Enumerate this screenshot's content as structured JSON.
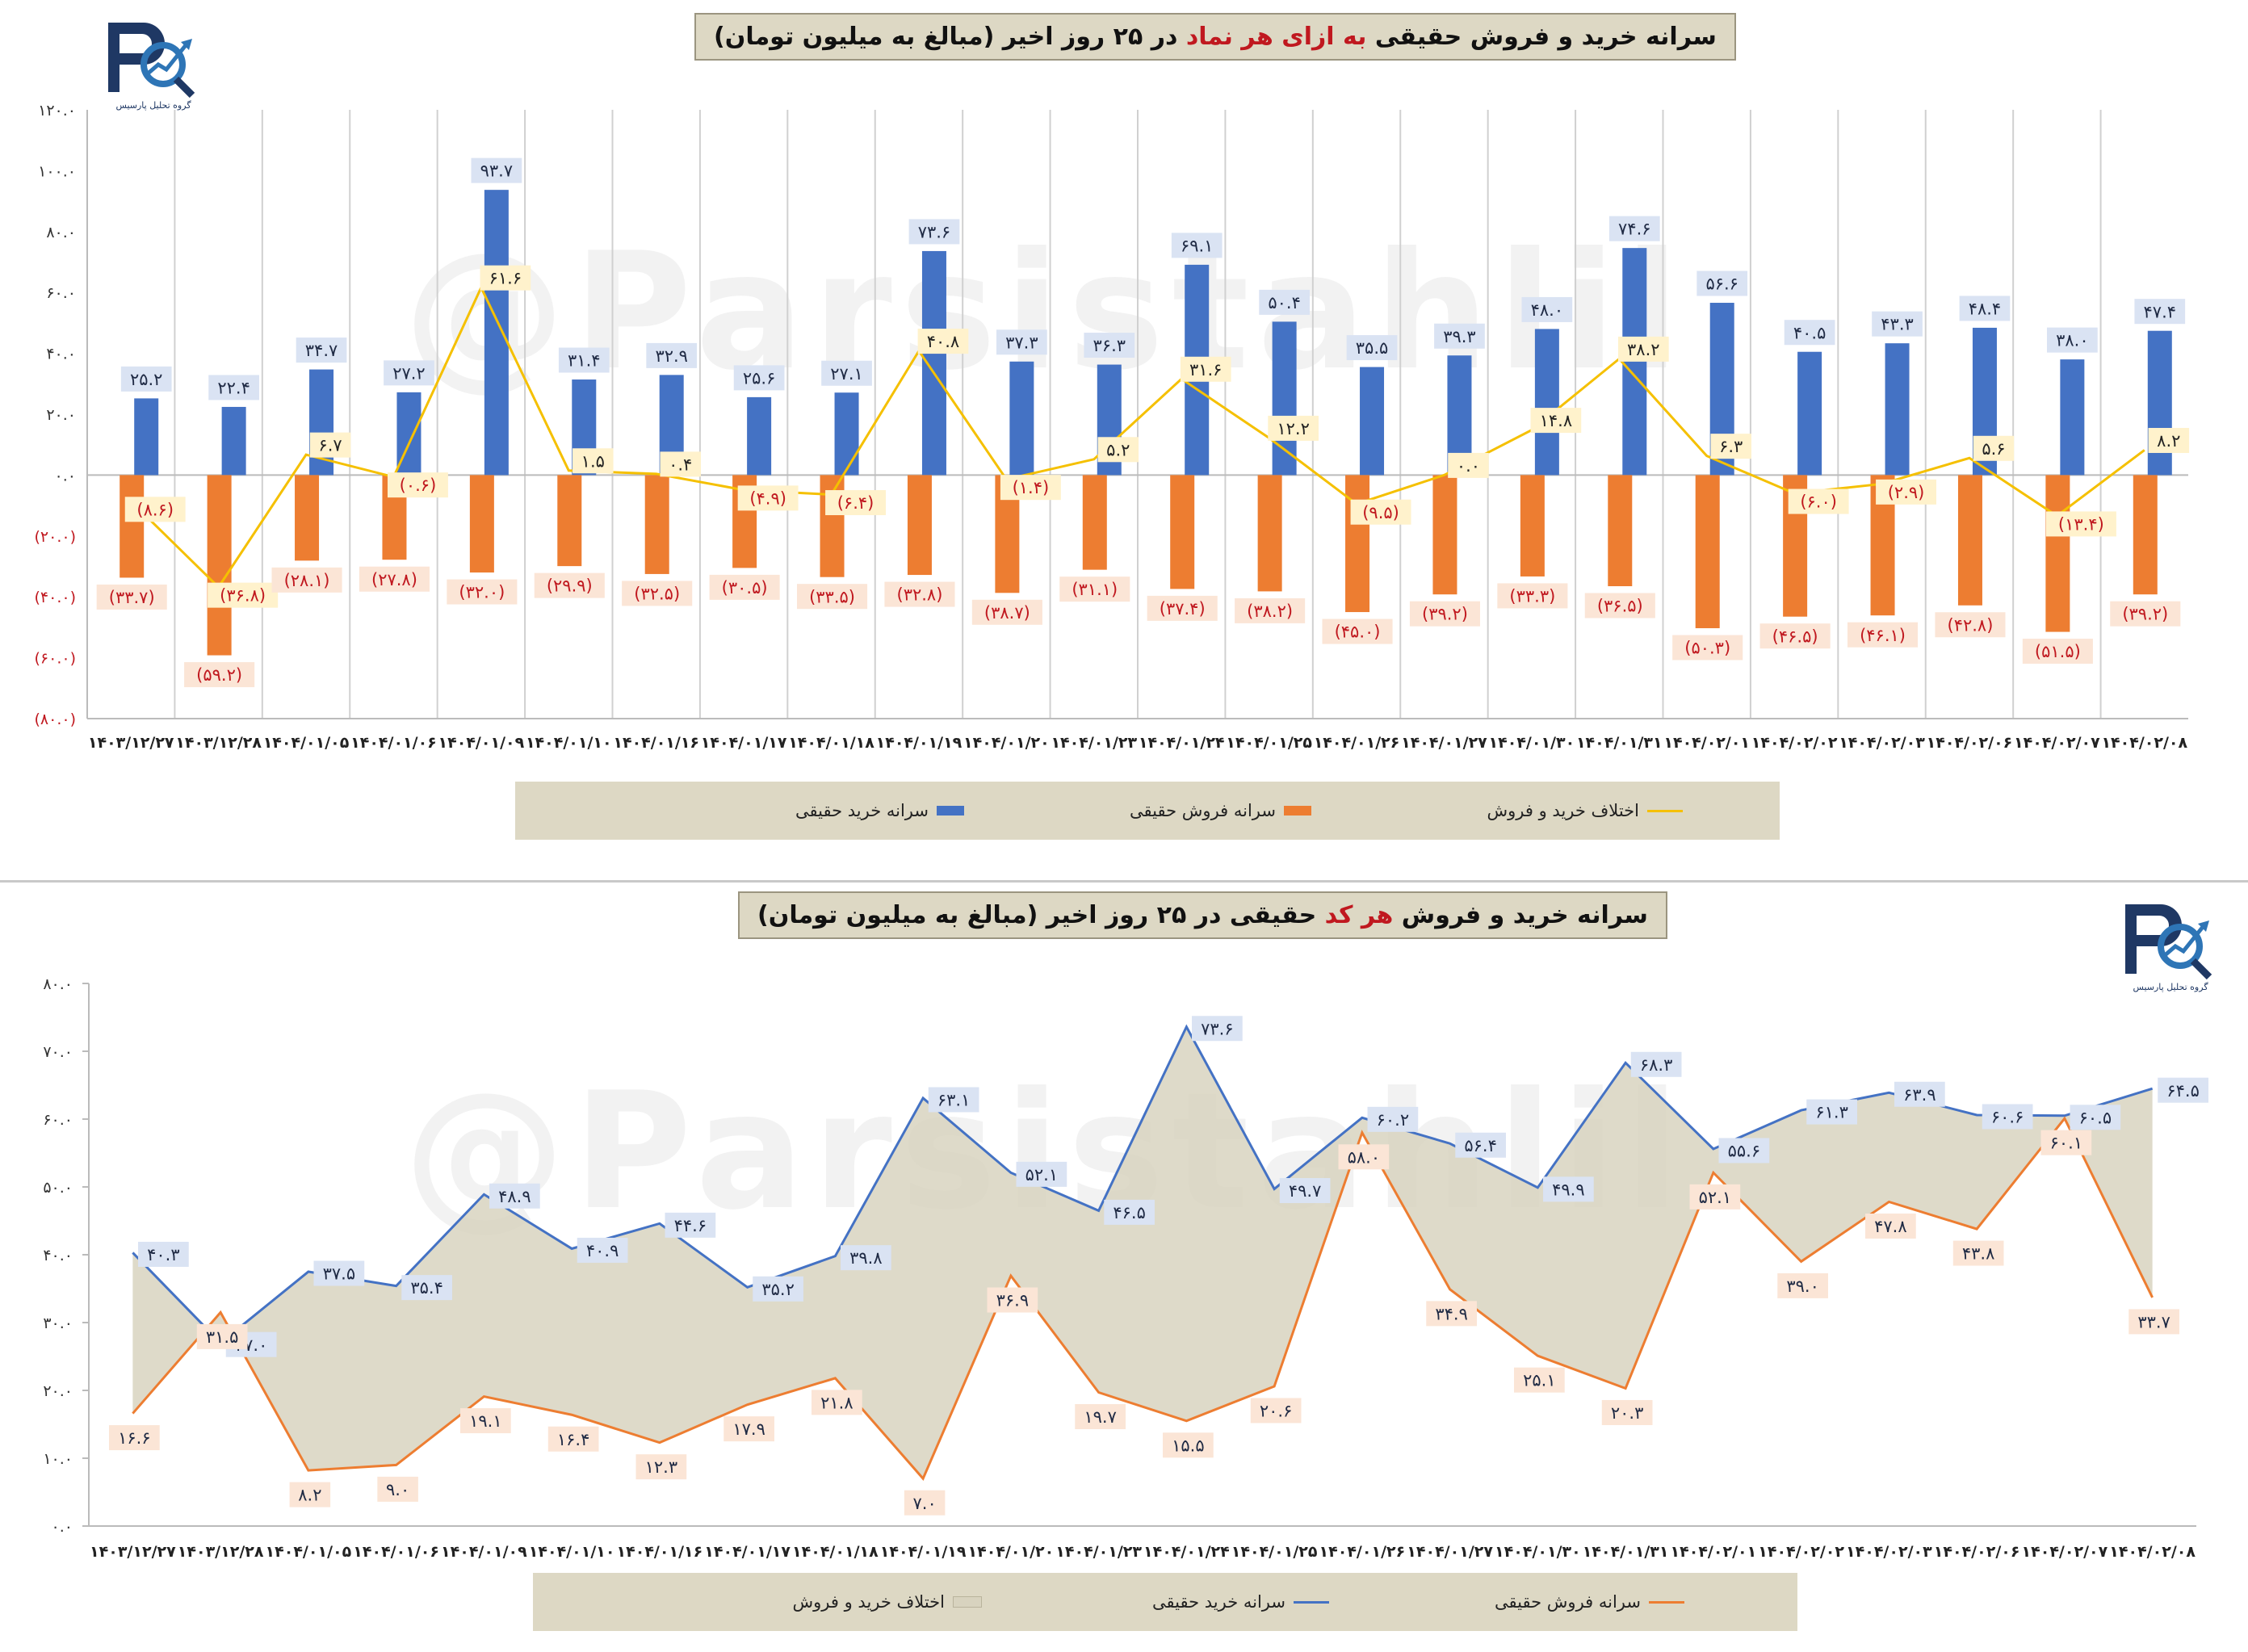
{
  "top_chart": {
    "title_prefix": "سرانه خرید و فروش حقیقی ",
    "title_highlight": "به ازای هر نماد",
    "title_suffix": " در ۲۵ روز اخیر (مبالغ به میلیون تومان)",
    "watermark": "@Parsistahlil",
    "logo_caption": "گروه تحلیل پارسیس",
    "legend": {
      "buy": "سرانه خرید حقیقی",
      "sell": "سرانه فروش حقیقی",
      "diff": "اختلاف خرید و فروش"
    },
    "colors": {
      "buy": "#4472c4",
      "sell": "#ed7d31",
      "diff": "#f5c000",
      "negative_label": "#c0181f"
    }
  },
  "bottom_chart": {
    "title_prefix": "سرانه خرید و فروش ",
    "title_highlight": "هر کد",
    "title_suffix": " حقیقی در ۲۵ روز اخیر (مبالغ به میلیون تومان)",
    "watermark": "@Parsistahlil",
    "logo_caption": "گروه تحلیل پارسیس",
    "legend": {
      "diff": "اختلاف خرید و فروش",
      "buy": "سرانه خرید حقیقی",
      "sell": "سرانه فروش حقیقی"
    },
    "colors": {
      "buy": "#4472c4",
      "sell": "#ed7d31",
      "area": "#d8d3bf"
    }
  },
  "chart_data": [
    {
      "type": "bar",
      "title": "سرانه خرید و فروش حقیقی به ازای هر نماد در ۲۵ روز اخیر (مبالغ به میلیون تومان)",
      "categories": [
        "۱۴۰۳/۱۲/۲۷",
        "۱۴۰۳/۱۲/۲۸",
        "۱۴۰۴/۰۱/۰۵",
        "۱۴۰۴/۰۱/۰۶",
        "۱۴۰۴/۰۱/۰۹",
        "۱۴۰۴/۰۱/۱۰",
        "۱۴۰۴/۰۱/۱۶",
        "۱۴۰۴/۰۱/۱۷",
        "۱۴۰۴/۰۱/۱۸",
        "۱۴۰۴/۰۱/۱۹",
        "۱۴۰۴/۰۱/۲۰",
        "۱۴۰۴/۰۱/۲۳",
        "۱۴۰۴/۰۱/۲۴",
        "۱۴۰۴/۰۱/۲۵",
        "۱۴۰۴/۰۱/۲۶",
        "۱۴۰۴/۰۱/۲۷",
        "۱۴۰۴/۰۱/۳۰",
        "۱۴۰۴/۰۱/۳۱",
        "۱۴۰۴/۰۲/۰۱",
        "۱۴۰۴/۰۲/۰۲",
        "۱۴۰۴/۰۲/۰۳",
        "۱۴۰۴/۰۲/۰۶",
        "۱۴۰۴/۰۲/۰۷",
        "۱۴۰۴/۰۲/۰۸"
      ],
      "series": [
        {
          "name": "سرانه خرید حقیقی",
          "type": "bar",
          "values": [
            25.2,
            22.4,
            34.7,
            27.2,
            93.7,
            31.4,
            32.9,
            25.6,
            27.1,
            73.6,
            37.3,
            36.3,
            69.1,
            50.4,
            35.5,
            39.3,
            48.0,
            74.6,
            56.6,
            40.5,
            43.3,
            48.4,
            38.0,
            47.4
          ],
          "labels": [
            "۲۵.۲",
            "۲۲.۴",
            "۳۴.۷",
            "۲۷.۲",
            "۹۳.۷",
            "۳۱.۴",
            "۳۲.۹",
            "۲۵.۶",
            "۲۷.۱",
            "۷۳.۶",
            "۳۷.۳",
            "۳۶.۳",
            "۶۹.۱",
            "۵۰.۴",
            "۳۵.۵",
            "۳۹.۳",
            "۴۸.۰",
            "۷۴.۶",
            "۵۶.۶",
            "۴۰.۵",
            "۴۳.۳",
            "۴۸.۴",
            "۳۸.۰",
            "۴۷.۴"
          ]
        },
        {
          "name": "سرانه فروش حقیقی",
          "type": "bar",
          "values": [
            -33.7,
            -59.2,
            -28.1,
            -27.8,
            -32.0,
            -29.9,
            -32.5,
            -30.5,
            -33.5,
            -32.8,
            -38.7,
            -31.1,
            -37.4,
            -38.2,
            -45.0,
            -39.2,
            -33.3,
            -36.5,
            -50.3,
            -46.5,
            -46.1,
            -42.8,
            -51.5,
            -39.2
          ],
          "labels": [
            "(۳۳.۷)",
            "(۵۹.۲)",
            "(۲۸.۱)",
            "(۲۷.۸)",
            "(۳۲.۰)",
            "(۲۹.۹)",
            "(۳۲.۵)",
            "(۳۰.۵)",
            "(۳۳.۵)",
            "(۳۲.۸)",
            "(۳۸.۷)",
            "(۳۱.۱)",
            "(۳۷.۴)",
            "(۳۸.۲)",
            "(۴۵.۰)",
            "(۳۹.۲)",
            "(۳۳.۳)",
            "(۳۶.۵)",
            "(۵۰.۳)",
            "(۴۶.۵)",
            "(۴۶.۱)",
            "(۴۲.۸)",
            "(۵۱.۵)",
            "(۳۹.۲)"
          ]
        },
        {
          "name": "اختلاف خرید و فروش",
          "type": "line",
          "values": [
            -8.6,
            -36.8,
            6.7,
            -0.6,
            61.6,
            1.5,
            0.4,
            -4.9,
            -6.4,
            40.8,
            -1.4,
            5.2,
            31.6,
            12.2,
            -9.5,
            0.0,
            14.8,
            38.2,
            6.3,
            -6.0,
            -2.9,
            5.6,
            -13.4,
            8.2
          ],
          "labels": [
            "(۸.۶)",
            "(۳۶.۸)",
            "۶.۷",
            "(۰.۶)",
            "۶۱.۶",
            "۱.۵",
            "۰.۴",
            "(۴.۹)",
            "(۶.۴)",
            "۴۰.۸",
            "(۱.۴)",
            "۵.۲",
            "۳۱.۶",
            "۱۲.۲",
            "(۹.۵)",
            "۰.۰",
            "۱۴.۸",
            "۳۸.۲",
            "۶.۳",
            "(۶.۰)",
            "(۲.۹)",
            "۵.۶",
            "(۱۳.۴)",
            "۸.۲"
          ]
        }
      ],
      "ylim": [
        -80,
        120
      ],
      "yticks": [
        -80,
        -60,
        -40,
        -20,
        0,
        20,
        40,
        60,
        80,
        100,
        120
      ],
      "ytick_labels": [
        "(۸۰.۰)",
        "(۶۰.۰)",
        "(۴۰.۰)",
        "(۲۰.۰)",
        "۰.۰",
        "۲۰.۰",
        "۴۰.۰",
        "۶۰.۰",
        "۸۰.۰",
        "۱۰۰.۰",
        "۱۲۰.۰"
      ],
      "grid": "vertical",
      "legend_position": "bottom"
    },
    {
      "type": "area",
      "title": "سرانه خرید و فروش هر کد حقیقی در ۲۵ روز اخیر (مبالغ به میلیون تومان)",
      "categories": [
        "۱۴۰۳/۱۲/۲۷",
        "۱۴۰۳/۱۲/۲۸",
        "۱۴۰۴/۰۱/۰۵",
        "۱۴۰۴/۰۱/۰۶",
        "۱۴۰۴/۰۱/۰۹",
        "۱۴۰۴/۰۱/۱۰",
        "۱۴۰۴/۰۱/۱۶",
        "۱۴۰۴/۰۱/۱۷",
        "۱۴۰۴/۰۱/۱۸",
        "۱۴۰۴/۰۱/۱۹",
        "۱۴۰۴/۰۱/۲۰",
        "۱۴۰۴/۰۱/۲۳",
        "۱۴۰۴/۰۱/۲۴",
        "۱۴۰۴/۰۱/۲۵",
        "۱۴۰۴/۰۱/۲۶",
        "۱۴۰۴/۰۱/۲۷",
        "۱۴۰۴/۰۱/۳۰",
        "۱۴۰۴/۰۱/۳۱",
        "۱۴۰۴/۰۲/۰۱",
        "۱۴۰۴/۰۲/۰۲",
        "۱۴۰۴/۰۲/۰۳",
        "۱۴۰۴/۰۲/۰۶",
        "۱۴۰۴/۰۲/۰۷",
        "۱۴۰۴/۰۲/۰۸"
      ],
      "series": [
        {
          "name": "سرانه خرید حقیقی",
          "type": "line",
          "values": [
            40.3,
            27.0,
            37.5,
            35.4,
            48.9,
            40.9,
            44.6,
            35.2,
            39.8,
            63.1,
            52.1,
            46.5,
            73.6,
            49.7,
            60.2,
            56.4,
            49.9,
            68.3,
            55.6,
            61.3,
            63.9,
            60.6,
            60.5,
            64.5
          ],
          "labels": [
            "۴۰.۳",
            "۲۷.۰",
            "۳۷.۵",
            "۳۵.۴",
            "۴۸.۹",
            "۴۰.۹",
            "۴۴.۶",
            "۳۵.۲",
            "۳۹.۸",
            "۶۳.۱",
            "۵۲.۱",
            "۴۶.۵",
            "۷۳.۶",
            "۴۹.۷",
            "۶۰.۲",
            "۵۶.۴",
            "۴۹.۹",
            "۶۸.۳",
            "۵۵.۶",
            "۶۱.۳",
            "۶۳.۹",
            "۶۰.۶",
            "۶۰.۵",
            "۶۴.۵"
          ]
        },
        {
          "name": "سرانه فروش حقیقی",
          "type": "line",
          "values": [
            16.6,
            31.5,
            8.2,
            9.0,
            19.1,
            16.4,
            12.3,
            17.9,
            21.8,
            7.0,
            36.9,
            19.7,
            15.5,
            20.6,
            58.0,
            34.9,
            25.1,
            20.3,
            52.1,
            39.0,
            47.8,
            43.8,
            60.1,
            33.7
          ],
          "labels": [
            "۱۶.۶",
            "۳۱.۵",
            "۸.۲",
            "۹.۰",
            "۱۹.۱",
            "۱۶.۴",
            "۱۲.۳",
            "۱۷.۹",
            "۲۱.۸",
            "۷.۰",
            "۳۶.۹",
            "۱۹.۷",
            "۱۵.۵",
            "۲۰.۶",
            "۵۸.۰",
            "۳۴.۹",
            "۲۵.۱",
            "۲۰.۳",
            "۵۲.۱",
            "۳۹.۰",
            "۴۷.۸",
            "۴۳.۸",
            "۶۰.۱",
            "۳۳.۷"
          ]
        },
        {
          "name": "اختلاف خرید و فروش",
          "type": "area"
        }
      ],
      "ylim": [
        0,
        80
      ],
      "yticks": [
        0,
        10,
        20,
        30,
        40,
        50,
        60,
        70,
        80
      ],
      "ytick_labels": [
        "۰.۰",
        "۱۰.۰",
        "۲۰.۰",
        "۳۰.۰",
        "۴۰.۰",
        "۵۰.۰",
        "۶۰.۰",
        "۷۰.۰",
        "۸۰.۰"
      ],
      "grid": "none",
      "legend_position": "bottom"
    }
  ]
}
